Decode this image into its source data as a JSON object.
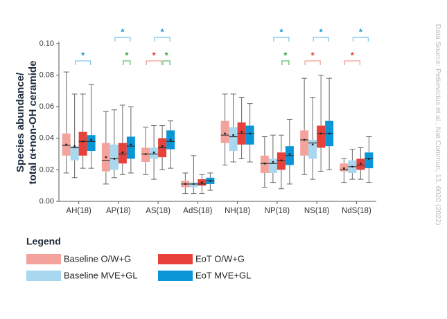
{
  "chart_data": {
    "type": "box",
    "y_label": [
      "Species abundance/",
      "total α+non-OH ceramide"
    ],
    "categories": [
      "AH(18)",
      "AP(18)",
      "AS(18)",
      "AdS(18)",
      "NH(18)",
      "NP(18)",
      "NS(18)",
      "NdS(18)"
    ],
    "ylim": [
      0,
      0.1
    ],
    "yticks": [
      {
        "value": 0,
        "label": "0.00"
      },
      0.02,
      0.04,
      0.06,
      0.08,
      {
        "value": 0.1,
        "label": "0.10"
      }
    ],
    "series": [
      {
        "name": "Baseline O/W+G",
        "color": "#f4a39c",
        "low": [
          0.018,
          0.011,
          0.017,
          0.005,
          0.023,
          0.009,
          0.017,
          0.012
        ],
        "q1": [
          0.029,
          0.019,
          0.025,
          0.009,
          0.037,
          0.018,
          0.029,
          0.019
        ],
        "median": [
          0.0355,
          0.026,
          0.03,
          0.011,
          0.042,
          0.024,
          0.039,
          0.02
        ],
        "q3": [
          0.043,
          0.037,
          0.034,
          0.013,
          0.051,
          0.029,
          0.045,
          0.024
        ],
        "high": [
          0.082,
          0.057,
          0.047,
          0.018,
          0.068,
          0.041,
          0.078,
          0.027
        ],
        "mean": [
          0.036,
          0.028,
          0.03,
          0.011,
          0.043,
          0.024,
          0.039,
          0.021
        ]
      },
      {
        "name": "Baseline MVE+GL",
        "color": "#a8d8ef",
        "low": [
          0.015,
          0.015,
          0.014,
          0.005,
          0.025,
          0.012,
          0.014,
          0.014
        ],
        "q1": [
          0.026,
          0.02,
          0.027,
          0.009,
          0.032,
          0.018,
          0.027,
          0.018
        ],
        "median": [
          0.034,
          0.027,
          0.03,
          0.011,
          0.041,
          0.024,
          0.037,
          0.022
        ],
        "q3": [
          0.035,
          0.036,
          0.034,
          0.012,
          0.047,
          0.027,
          0.039,
          0.026
        ],
        "high": [
          0.068,
          0.058,
          0.048,
          0.029,
          0.068,
          0.042,
          0.066,
          0.033
        ],
        "mean": [
          0.035,
          0.027,
          0.031,
          0.011,
          0.042,
          0.025,
          0.036,
          0.022
        ]
      },
      {
        "name": "EoT O/W+G",
        "color": "#e8403a",
        "low": [
          0.021,
          0.017,
          0.02,
          0.005,
          0.027,
          0.008,
          0.019,
          0.014
        ],
        "q1": [
          0.029,
          0.024,
          0.028,
          0.01,
          0.036,
          0.02,
          0.034,
          0.02
        ],
        "median": [
          0.038,
          0.03,
          0.034,
          0.011,
          0.043,
          0.026,
          0.043,
          0.023
        ],
        "q3": [
          0.044,
          0.037,
          0.04,
          0.014,
          0.05,
          0.031,
          0.048,
          0.027
        ],
        "high": [
          0.068,
          0.061,
          0.048,
          0.017,
          0.066,
          0.042,
          0.08,
          0.034
        ],
        "mean": [
          0.038,
          0.031,
          0.035,
          0.012,
          0.044,
          0.026,
          0.043,
          0.024
        ]
      },
      {
        "name": "EoT MVE+GL",
        "color": "#0a96d6",
        "low": [
          0.021,
          0.018,
          0.021,
          0.007,
          0.025,
          0.011,
          0.02,
          0.012
        ],
        "q1": [
          0.032,
          0.027,
          0.033,
          0.011,
          0.036,
          0.023,
          0.035,
          0.021
        ],
        "median": [
          0.038,
          0.035,
          0.038,
          0.013,
          0.043,
          0.029,
          0.043,
          0.027
        ],
        "q3": [
          0.042,
          0.041,
          0.045,
          0.015,
          0.048,
          0.035,
          0.051,
          0.031
        ],
        "high": [
          0.074,
          0.06,
          0.051,
          0.018,
          0.062,
          0.052,
          0.078,
          0.041
        ],
        "mean": [
          0.039,
          0.036,
          0.039,
          0.013,
          0.043,
          0.03,
          0.043,
          0.027
        ]
      }
    ],
    "significance": [
      {
        "category": "AH(18)",
        "between": [
          "Baseline MVE+GL",
          "EoT MVE+GL"
        ],
        "label": "*",
        "color": "#1a9ad6"
      },
      {
        "category": "AP(18)",
        "between": [
          "Baseline MVE+GL",
          "EoT MVE+GL"
        ],
        "label": "*",
        "color": "#1a9ad6"
      },
      {
        "category": "AP(18)",
        "between": [
          "EoT O/W+G",
          "EoT MVE+GL"
        ],
        "label": "*",
        "color": "#2eaa4a"
      },
      {
        "category": "AS(18)",
        "between": [
          "Baseline MVE+GL",
          "EoT MVE+GL"
        ],
        "label": "*",
        "color": "#1a9ad6"
      },
      {
        "category": "AS(18)",
        "between": [
          "Baseline O/W+G",
          "EoT O/W+G"
        ],
        "label": "*",
        "color": "#e8403a"
      },
      {
        "category": "AS(18)",
        "between": [
          "EoT O/W+G",
          "EoT MVE+GL"
        ],
        "label": "*",
        "color": "#2eaa4a"
      },
      {
        "category": "NP(18)",
        "between": [
          "Baseline MVE+GL",
          "EoT MVE+GL"
        ],
        "label": "*",
        "color": "#1a9ad6"
      },
      {
        "category": "NP(18)",
        "between": [
          "EoT O/W+G",
          "EoT MVE+GL"
        ],
        "label": "*",
        "color": "#2eaa4a"
      },
      {
        "category": "NS(18)",
        "between": [
          "Baseline MVE+GL",
          "EoT MVE+GL"
        ],
        "label": "*",
        "color": "#1a9ad6"
      },
      {
        "category": "NS(18)",
        "between": [
          "Baseline O/W+G",
          "EoT O/W+G"
        ],
        "label": "*",
        "color": "#e8403a"
      },
      {
        "category": "NdS(18)",
        "between": [
          "Baseline MVE+GL",
          "EoT MVE+GL"
        ],
        "label": "*",
        "color": "#1a9ad6"
      },
      {
        "category": "NdS(18)",
        "between": [
          "Baseline O/W+G",
          "EoT O/W+G"
        ],
        "label": "*",
        "color": "#e8403a"
      }
    ],
    "legend_title": "Legend",
    "source": "Data Source: Petkevicius et al., Nat Commun, 13, 6020 (2022)"
  }
}
